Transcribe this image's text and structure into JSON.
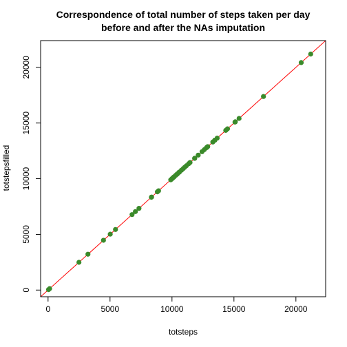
{
  "chart_data": {
    "type": "scatter",
    "title_lines": [
      "Correspondence of total number of steps taken per day",
      "before and after the NAs imputation"
    ],
    "xlabel": "totsteps",
    "ylabel": "totstepsfilled",
    "xlim": [
      -600,
      22400
    ],
    "ylim": [
      -600,
      22400
    ],
    "x_ticks": [
      0,
      5000,
      10000,
      15000,
      20000
    ],
    "y_ticks": [
      0,
      5000,
      10000,
      15000,
      20000
    ],
    "grid": false,
    "reference_line": {
      "intercept": 0,
      "slope": 1,
      "color": "#FF0000"
    },
    "point_color": "#3A8A2A",
    "points": [
      {
        "x": 41,
        "y": 41
      },
      {
        "x": 126,
        "y": 126
      },
      {
        "x": 2492,
        "y": 2492
      },
      {
        "x": 3219,
        "y": 3219
      },
      {
        "x": 4472,
        "y": 4472
      },
      {
        "x": 5018,
        "y": 5018
      },
      {
        "x": 5441,
        "y": 5441
      },
      {
        "x": 6778,
        "y": 6778
      },
      {
        "x": 7047,
        "y": 7047
      },
      {
        "x": 7336,
        "y": 7336
      },
      {
        "x": 8334,
        "y": 8334
      },
      {
        "x": 8355,
        "y": 8355
      },
      {
        "x": 8821,
        "y": 8821
      },
      {
        "x": 8918,
        "y": 8918
      },
      {
        "x": 9900,
        "y": 9900
      },
      {
        "x": 10000,
        "y": 10000
      },
      {
        "x": 10056,
        "y": 10056
      },
      {
        "x": 10119,
        "y": 10119
      },
      {
        "x": 10139,
        "y": 10139
      },
      {
        "x": 10183,
        "y": 10183
      },
      {
        "x": 10304,
        "y": 10304
      },
      {
        "x": 10395,
        "y": 10395
      },
      {
        "x": 10439,
        "y": 10439
      },
      {
        "x": 10571,
        "y": 10571
      },
      {
        "x": 10600,
        "y": 10600
      },
      {
        "x": 10765,
        "y": 10765
      },
      {
        "x": 10900,
        "y": 10900
      },
      {
        "x": 11015,
        "y": 11015
      },
      {
        "x": 11162,
        "y": 11162
      },
      {
        "x": 11352,
        "y": 11352
      },
      {
        "x": 11458,
        "y": 11458
      },
      {
        "x": 11834,
        "y": 11834
      },
      {
        "x": 11829,
        "y": 11829
      },
      {
        "x": 12116,
        "y": 12116
      },
      {
        "x": 12426,
        "y": 12426
      },
      {
        "x": 12608,
        "y": 12608
      },
      {
        "x": 12787,
        "y": 12787
      },
      {
        "x": 12811,
        "y": 12811
      },
      {
        "x": 12883,
        "y": 12883
      },
      {
        "x": 13294,
        "y": 13294
      },
      {
        "x": 13452,
        "y": 13452
      },
      {
        "x": 13460,
        "y": 13460
      },
      {
        "x": 13646,
        "y": 13646
      },
      {
        "x": 14339,
        "y": 14339
      },
      {
        "x": 14478,
        "y": 14478
      },
      {
        "x": 15084,
        "y": 15084
      },
      {
        "x": 15110,
        "y": 15110
      },
      {
        "x": 15414,
        "y": 15414
      },
      {
        "x": 17382,
        "y": 17382
      },
      {
        "x": 20427,
        "y": 20427
      },
      {
        "x": 21194,
        "y": 21194
      }
    ]
  }
}
